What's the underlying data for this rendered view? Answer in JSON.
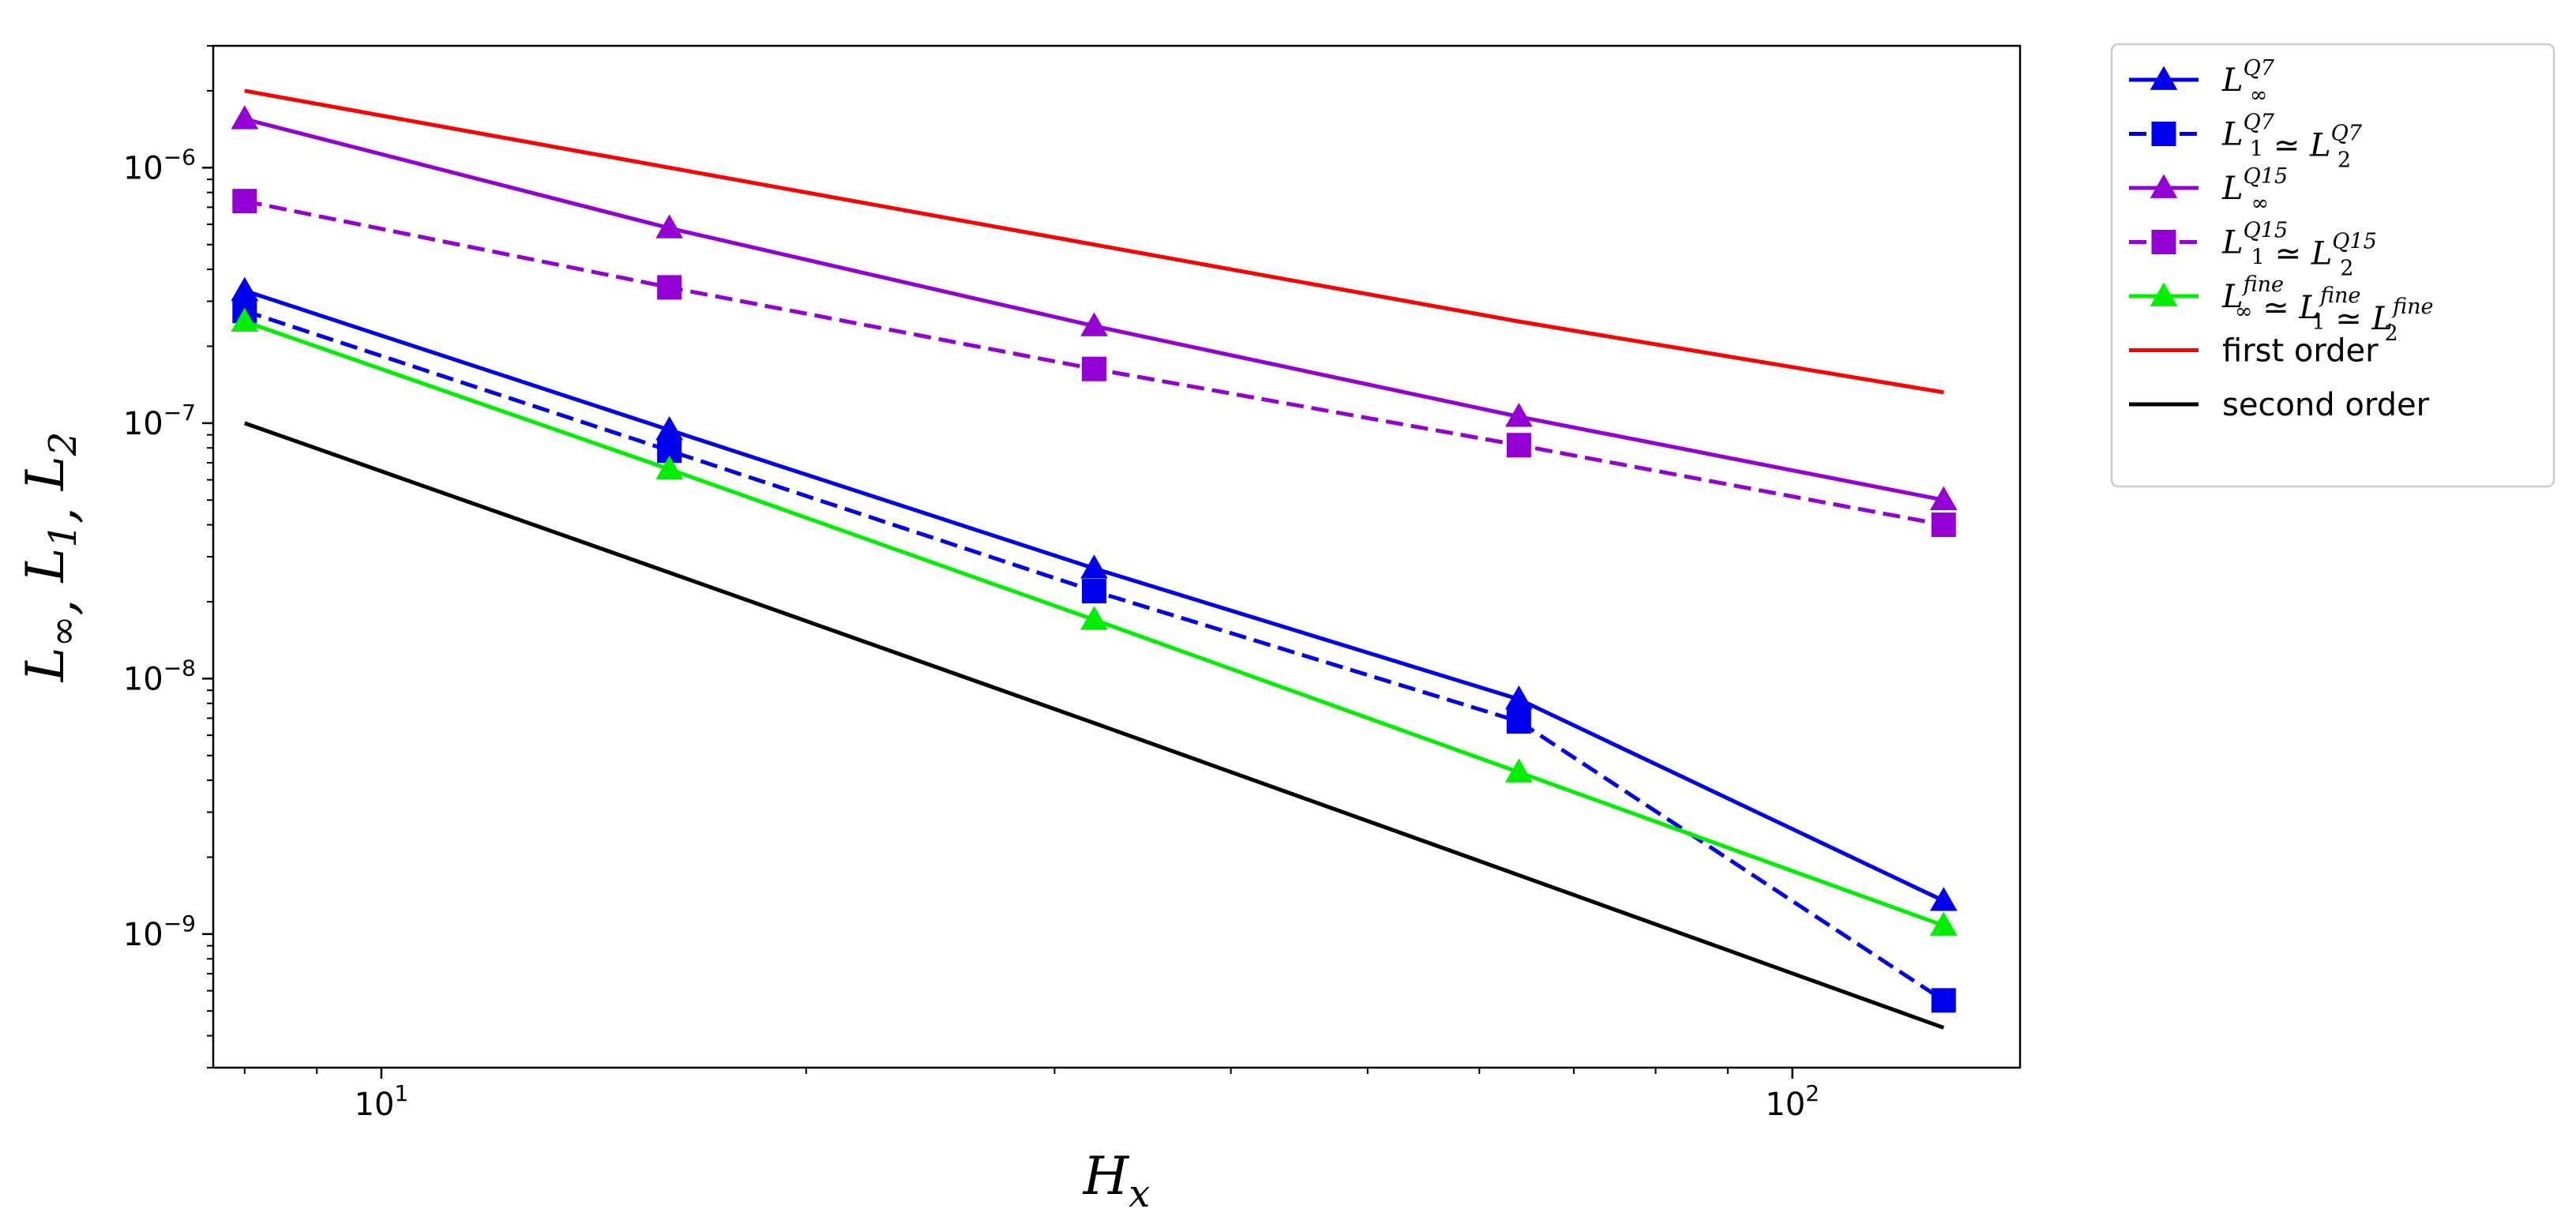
{
  "chart_data": {
    "type": "line",
    "title": "",
    "xlabel": {
      "base": "H",
      "sub": "x"
    },
    "ylabel": {
      "parts": [
        {
          "base": "L",
          "sub": "∞"
        },
        {
          "base": "L",
          "sub": "1"
        },
        {
          "base": "L",
          "sub": "2"
        }
      ],
      "sep": ", "
    },
    "xscale": "log",
    "yscale": "log",
    "xlim": [
      7.6,
      145
    ],
    "ylim": [
      3e-10,
      3e-06
    ],
    "grid": false,
    "legend_position": "outside-right-top",
    "x_ticks": [
      {
        "value": 10,
        "base": "10",
        "exp": "1"
      },
      {
        "value": 100,
        "base": "10",
        "exp": "2"
      }
    ],
    "y_ticks": [
      {
        "value": 1e-09,
        "base": "10",
        "exp": "−9"
      },
      {
        "value": 1e-08,
        "base": "10",
        "exp": "−8"
      },
      {
        "value": 1e-07,
        "base": "10",
        "exp": "−7"
      },
      {
        "value": 1e-06,
        "base": "10",
        "exp": "−6"
      }
    ],
    "x": [
      8,
      16,
      32,
      64,
      128
    ],
    "series": [
      {
        "name_parts": [
          {
            "t": "L",
            "sub": "∞",
            "sup": "Q7"
          }
        ],
        "color": "#0000ee",
        "marker": "triangle",
        "dash": "solid",
        "values": [
          3.3e-07,
          9.4e-08,
          2.7e-08,
          8.3e-09,
          1.35e-09
        ]
      },
      {
        "name_parts": [
          {
            "t": "L",
            "sub": "1",
            "sup": "Q7"
          },
          {
            "op": "≃"
          },
          {
            "t": "L",
            "sub": "2",
            "sup": "Q7"
          }
        ],
        "color": "#0000ee",
        "marker": "square",
        "dash": "dashed",
        "values": [
          2.75e-07,
          7.8e-08,
          2.2e-08,
          6.8e-09,
          5.5e-10
        ]
      },
      {
        "name_parts": [
          {
            "t": "L",
            "sub": "∞",
            "sup": "Q15"
          }
        ],
        "color": "#9400d3",
        "marker": "triangle",
        "dash": "solid",
        "values": [
          1.55e-06,
          5.8e-07,
          2.4e-07,
          1.06e-07,
          5e-08
        ]
      },
      {
        "name_parts": [
          {
            "t": "L",
            "sub": "1",
            "sup": "Q15"
          },
          {
            "op": "≃"
          },
          {
            "t": "L",
            "sub": "2",
            "sup": "Q15"
          }
        ],
        "color": "#9400d3",
        "marker": "square",
        "dash": "dashed",
        "values": [
          7.4e-07,
          3.4e-07,
          1.63e-07,
          8.2e-08,
          4e-08
        ]
      },
      {
        "name_parts": [
          {
            "t": "L",
            "sub": "∞",
            "sup": "fine"
          },
          {
            "op": "≃"
          },
          {
            "t": "L",
            "sub": "1",
            "sup": "fine"
          },
          {
            "op": "≃"
          },
          {
            "t": "L",
            "sub": "2",
            "sup": "fine"
          }
        ],
        "color": "#00ee00",
        "marker": "triangle",
        "dash": "solid",
        "values": [
          2.5e-07,
          6.6e-08,
          1.7e-08,
          4.3e-09,
          1.08e-09
        ]
      },
      {
        "name": "first order",
        "color": "#ff0000",
        "marker": "none",
        "dash": "solid",
        "values": [
          2e-06,
          1e-06,
          5e-07,
          2.5e-07,
          1.32e-07
        ]
      },
      {
        "name": "second order",
        "color": "#000000",
        "marker": "none",
        "dash": "solid",
        "values": [
          1e-07,
          2.6e-08,
          6.7e-09,
          1.7e-09,
          4.3e-10
        ]
      }
    ]
  }
}
